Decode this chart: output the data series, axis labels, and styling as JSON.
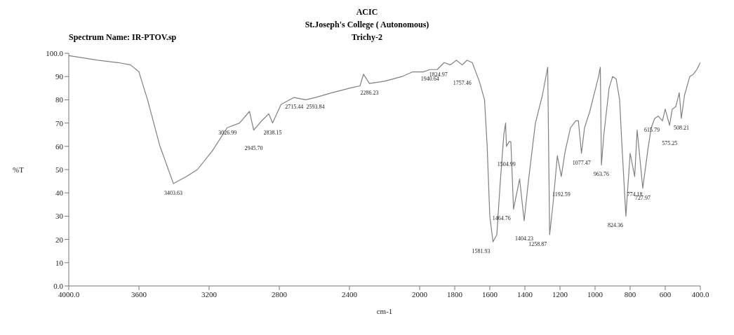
{
  "chart_data": {
    "type": "line",
    "title": "ACIC",
    "subtitle": "St.Joseph's College ( Autonomous)",
    "xlabel": "cm-1",
    "ylabel": "%T",
    "annotations": [
      "Trichy-2",
      "Spectrum Name: IR-PTOV.sp",
      {
        "text": "3403.63",
        "x": 3403.63,
        "y": 44
      },
      {
        "text": "3026.99",
        "x": 3026.99,
        "y": 70
      },
      {
        "text": "2945.70",
        "x": 2945.7,
        "y": 67
      },
      {
        "text": "2838.15",
        "x": 2838.15,
        "y": 70
      },
      {
        "text": "2715.44",
        "x": 2715.44,
        "y": 81
      },
      {
        "text": "2593.84",
        "x": 2593.84,
        "y": 81
      },
      {
        "text": "2286.23",
        "x": 2286.23,
        "y": 87
      },
      {
        "text": "1940.64",
        "x": 1940.64,
        "y": 93
      },
      {
        "text": "1824.97",
        "x": 1824.97,
        "y": 95
      },
      {
        "text": "1757.46",
        "x": 1757.46,
        "y": 95
      },
      {
        "text": "1581.93",
        "x": 1581.93,
        "y": 19
      },
      {
        "text": "1504.99",
        "x": 1504.99,
        "y": 60
      },
      {
        "text": "1464.76",
        "x": 1464.76,
        "y": 33
      },
      {
        "text": "1404.23",
        "x": 1404.23,
        "y": 28
      },
      {
        "text": "1258.87",
        "x": 1258.87,
        "y": 22
      },
      {
        "text": "1192.59",
        "x": 1192.59,
        "y": 47
      },
      {
        "text": "1077.47",
        "x": 1077.47,
        "y": 57
      },
      {
        "text": "963.76",
        "x": 963.76,
        "y": 52
      },
      {
        "text": "824.36",
        "x": 824.36,
        "y": 30
      },
      {
        "text": "774.18",
        "x": 774.18,
        "y": 47
      },
      {
        "text": "727.97",
        "x": 727.97,
        "y": 42
      },
      {
        "text": "615.79",
        "x": 615.79,
        "y": 71
      },
      {
        "text": "575.25",
        "x": 575.25,
        "y": 69
      },
      {
        "text": "508.21",
        "x": 508.21,
        "y": 72
      }
    ],
    "x": [
      4000,
      3835,
      3720,
      3648,
      3600,
      3551,
      3480,
      3403.63,
      3330,
      3267,
      3182,
      3097,
      3026.99,
      2970,
      2945.7,
      2900,
      2860,
      2838.15,
      2790,
      2715.44,
      2650,
      2593.84,
      2500,
      2400,
      2340,
      2320,
      2286.23,
      2200,
      2100,
      2040,
      1980,
      1940.64,
      1900,
      1860,
      1824.97,
      1790,
      1757.46,
      1730,
      1700,
      1660,
      1630,
      1615,
      1600,
      1581.93,
      1560,
      1540,
      1520,
      1510,
      1504.99,
      1490,
      1480,
      1464.76,
      1430,
      1404.23,
      1380,
      1340,
      1300,
      1270,
      1258.87,
      1240,
      1215,
      1192.59,
      1170,
      1140,
      1110,
      1095,
      1077.47,
      1060,
      1030,
      1000,
      980,
      970,
      963.76,
      950,
      920,
      900,
      880,
      860,
      850,
      824.36,
      800,
      774.18,
      760,
      727.97,
      700,
      680,
      660,
      640,
      615.79,
      600,
      575.25,
      560,
      540,
      520,
      508.21,
      490,
      460,
      440,
      420,
      400
    ],
    "series": [
      {
        "color": "#808080",
        "values": [
          99,
          97,
          96,
          95,
          92,
          80,
          60,
          44,
          47,
          50,
          58,
          68,
          70,
          75,
          67,
          71,
          74,
          70,
          78,
          81,
          80,
          81,
          83,
          85,
          86,
          91,
          87,
          88,
          90,
          92,
          92,
          93,
          93,
          96,
          95,
          97,
          95,
          97,
          96,
          88,
          80,
          60,
          30,
          19,
          22,
          45,
          65,
          70,
          60,
          62,
          62,
          33,
          46,
          28,
          45,
          70,
          82,
          94,
          22,
          35,
          56,
          47,
          58,
          68,
          71,
          71,
          57,
          68,
          75,
          84,
          90,
          94,
          52,
          65,
          85,
          90,
          89,
          80,
          65,
          30,
          57,
          47,
          67,
          42,
          58,
          68,
          72,
          73,
          71,
          76,
          69,
          76,
          77,
          83,
          72,
          82,
          90,
          91,
          93,
          96
        ]
      }
    ],
    "xlim": [
      4000,
      400
    ],
    "xticks": [
      {
        "value": 4000,
        "label": "4000.0"
      },
      3600,
      3200,
      2800,
      2400,
      2000,
      1800,
      1600,
      1400,
      1200,
      1000,
      800,
      600,
      {
        "value": 400,
        "label": "400.0"
      }
    ],
    "ylim": [
      0,
      100
    ],
    "yticks": [
      {
        "value": 0,
        "label": "0.0"
      },
      10,
      20,
      30,
      40,
      50,
      60,
      70,
      80,
      90,
      {
        "value": 100,
        "label": "100.0"
      }
    ],
    "grid": false,
    "legend": false,
    "marker": "none",
    "line_style": "solid"
  }
}
